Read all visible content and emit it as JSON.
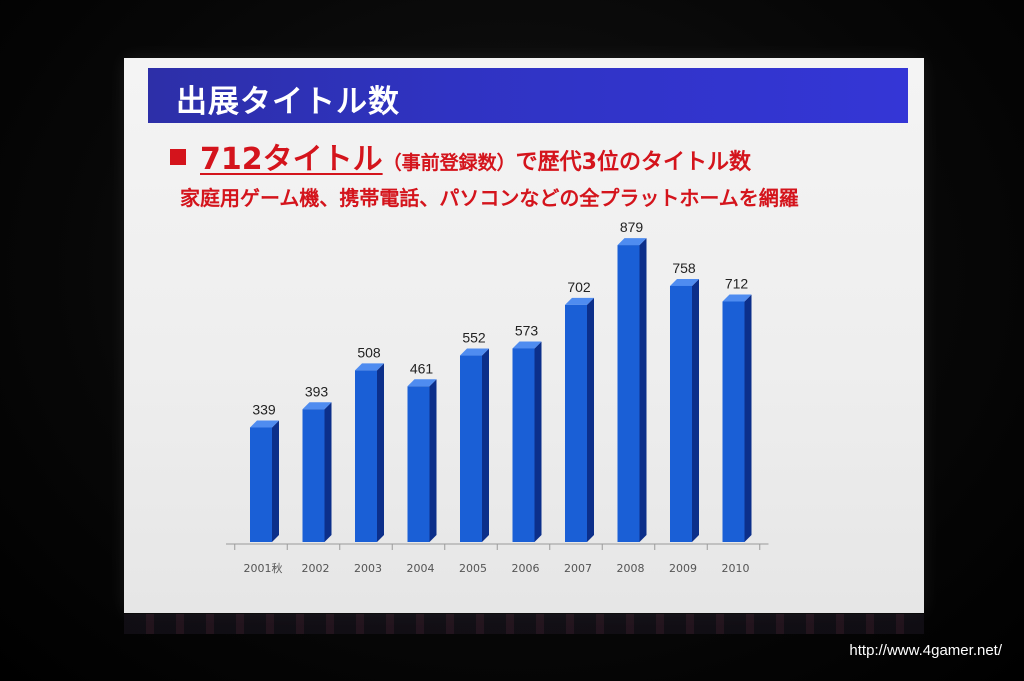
{
  "slide": {
    "title": "出展タイトル数",
    "headline_big": "712タイトル",
    "headline_paren": "（事前登録数）",
    "headline_rest": "で歴代3位のタイトル数",
    "subline": "家庭用ゲーム機、携帯電話、パソコンなどの全プラットホームを網羅"
  },
  "watermark": "http://www.4gamer.net/",
  "colors": {
    "title_bar": "#2f33c2",
    "headline_red": "#d4141c",
    "bar_front": "#1a5fd6",
    "bar_side": "#0c2f8a",
    "bar_top": "#4f8cf0"
  },
  "chart_data": {
    "type": "bar",
    "title": "",
    "xlabel": "",
    "ylabel": "",
    "categories": [
      "2001秋",
      "2002",
      "2003",
      "2004",
      "2005",
      "2006",
      "2007",
      "2008",
      "2009",
      "2010"
    ],
    "values": [
      339,
      393,
      508,
      461,
      552,
      573,
      702,
      879,
      758,
      712
    ],
    "data_labels": [
      "339",
      "393",
      "508",
      "461",
      "552",
      "573",
      "702",
      "879",
      "758",
      "712"
    ],
    "ylim": [
      0,
      900
    ],
    "grid": false,
    "legend": "none",
    "style": "3d"
  }
}
